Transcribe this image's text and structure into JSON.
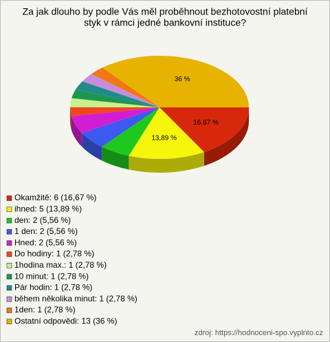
{
  "chart_data": {
    "type": "pie",
    "title": [
      "Za jak dlouho by podle Vás měl proběhnout bezhotovostní platební",
      "styk v rámci jedné bankovní instituce?"
    ],
    "categories": [
      "Okamžitě: 6 (16,67 %)",
      "ihned: 5 (13,89 %)",
      "den: 2 (5,56 %)",
      "1 den: 2 (5,56 %)",
      "Hned: 2 (5,56 %)",
      "Do hodiny: 1 (2,78 %)",
      "1hodina max.: 1 (2,78 %)",
      "10 minut: 1 (2,78 %)",
      "Pár hodin: 1 (2,78 %)",
      "během několika minut: 1 (2,78 %)",
      "1den: 1 (2,78 %)",
      "Ostatní odpovědi: 13 (36 %)"
    ],
    "values": [
      16.67,
      13.89,
      5.56,
      5.56,
      5.56,
      2.78,
      2.78,
      2.78,
      2.78,
      2.78,
      2.78,
      36
    ],
    "value_labels": [
      "16,67 %",
      "13,89 %",
      null,
      null,
      null,
      null,
      null,
      null,
      null,
      null,
      null,
      "36 %"
    ],
    "colors": [
      "#d8280c",
      "#f6f60c",
      "#1ec81e",
      "#3c5af0",
      "#d21ed2",
      "#f0461e",
      "#c8f08c",
      "#1e9650",
      "#1e8c8c",
      "#c88cdc",
      "#f07814",
      "#e6b400"
    ],
    "source": "zdroj: https://hodnoceni-spo.vyplnto.cz"
  }
}
